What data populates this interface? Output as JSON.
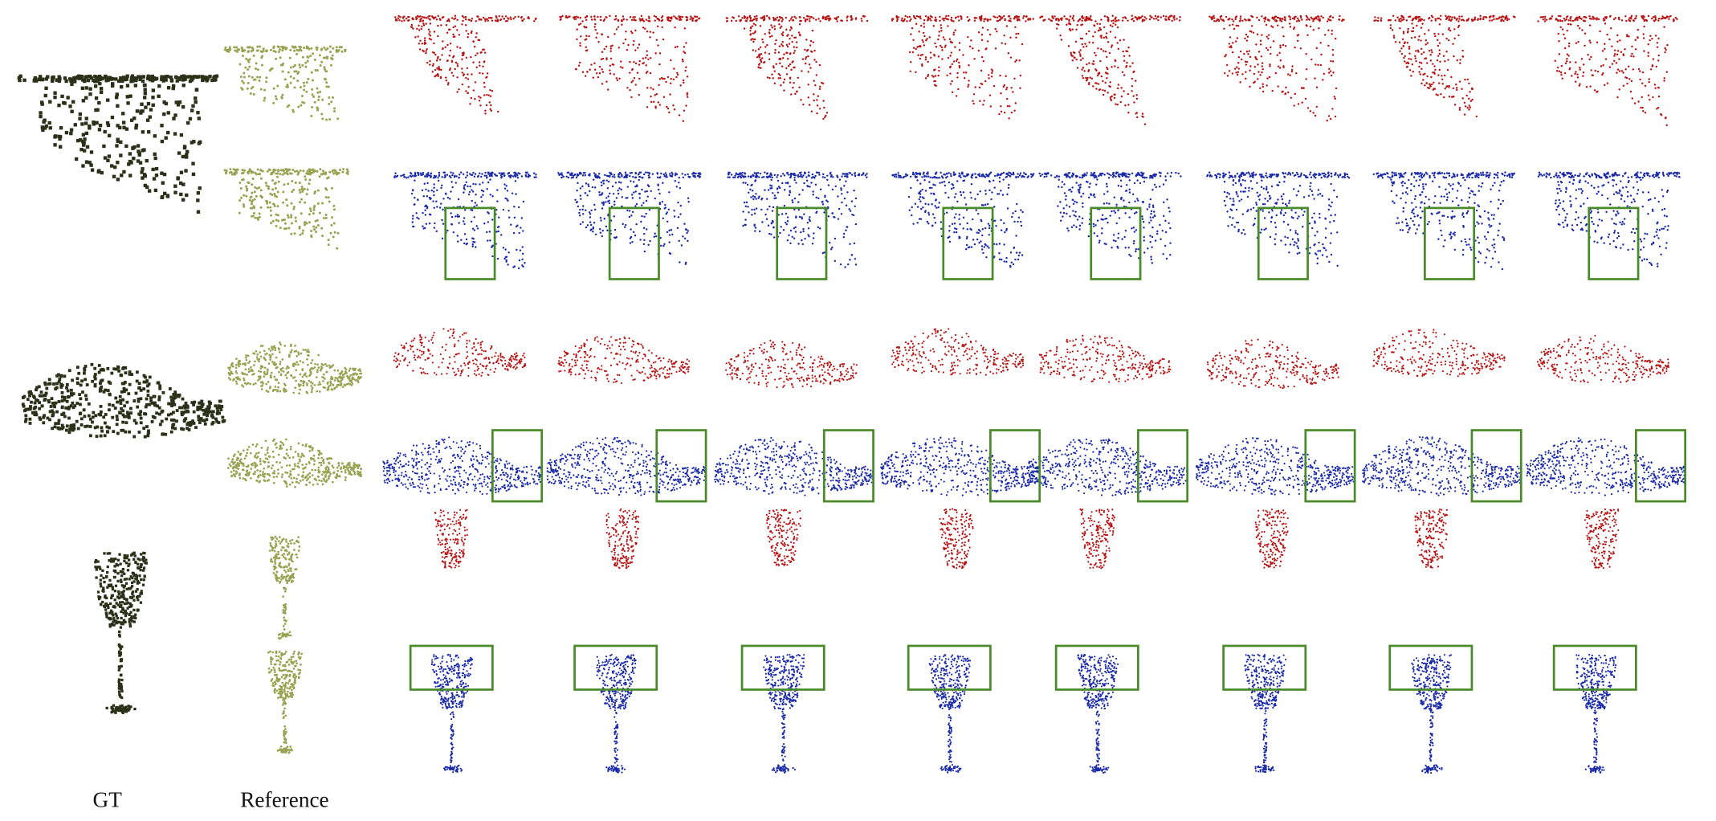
{
  "labels": {
    "gt": "GT",
    "reference": "Reference"
  }
}
